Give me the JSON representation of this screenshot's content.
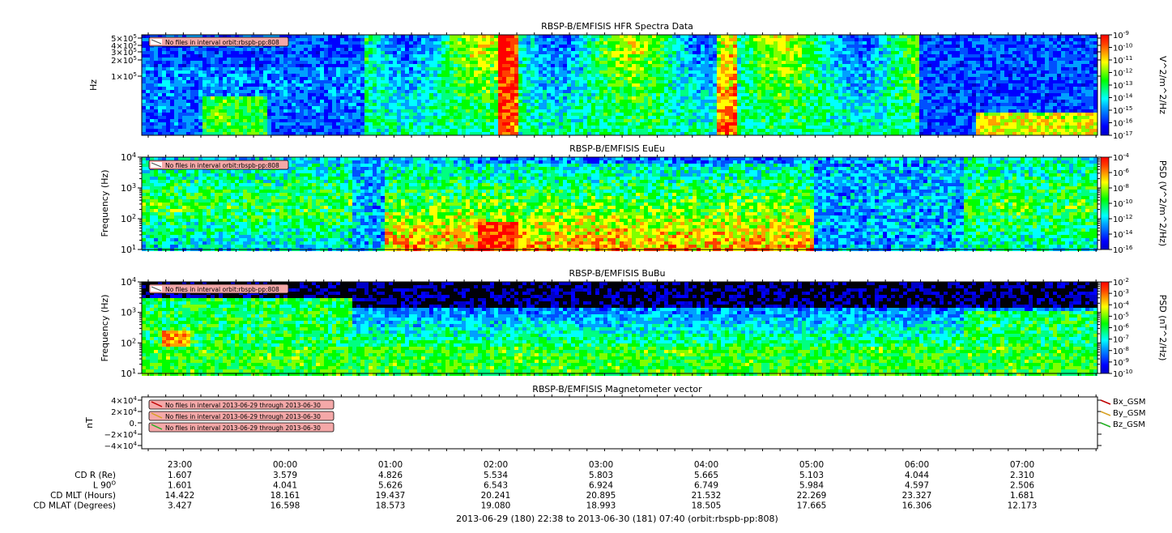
{
  "page": {
    "time_range_label": "2013-06-29 (180) 22:38 to 2013-06-30 (181) 07:40 (orbit:rbspb-pp:808)"
  },
  "colors": {
    "spectrogram_scale": [
      "#0000c8",
      "#0000ff",
      "#0050ff",
      "#00a0ff",
      "#00ffff",
      "#00ff80",
      "#00ff00",
      "#80ff00",
      "#ffff00",
      "#ffa000",
      "#ff4000",
      "#ff0000"
    ],
    "warning_fill": "#f4a8a8",
    "bx": "#c00000",
    "by": "#d8a020",
    "bz": "#20b020"
  },
  "time_axis": {
    "ticks": [
      "23:00",
      "00:00",
      "01:00",
      "02:00",
      "03:00",
      "04:00",
      "05:00",
      "06:00",
      "07:00"
    ]
  },
  "ephemeris": {
    "rows": [
      {
        "label": "CD R (Re)",
        "values": [
          "1.607",
          "3.579",
          "4.826",
          "5.534",
          "5.803",
          "5.665",
          "5.103",
          "4.044",
          "2.310"
        ]
      },
      {
        "label": "L 90",
        "sup": "O",
        "values": [
          "1.601",
          "4.041",
          "5.626",
          "6.543",
          "6.924",
          "6.749",
          "5.984",
          "4.597",
          "2.506"
        ]
      },
      {
        "label": "CD MLT (Hours)",
        "values": [
          "14.422",
          "18.161",
          "19.437",
          "20.241",
          "20.895",
          "21.532",
          "22.269",
          "23.327",
          "1.681"
        ]
      },
      {
        "label": "CD MLAT (Degrees)",
        "values": [
          "3.427",
          "16.598",
          "18.573",
          "19.080",
          "18.993",
          "18.505",
          "17.665",
          "16.306",
          "12.173"
        ]
      }
    ]
  },
  "chart_data": [
    {
      "type": "heatmap",
      "title": "RBSP-B/EMFISIS  HFR Spectra Data",
      "ylabel": "Hz",
      "y_scale": "log",
      "y_ticks": [
        {
          "base": "5",
          "exp": "5"
        },
        {
          "base": "4",
          "exp": "5"
        },
        {
          "base": "3",
          "exp": "5"
        },
        {
          "base": "2",
          "exp": "5"
        },
        {
          "base": "1",
          "exp": "5"
        }
      ],
      "ylim": [
        10000,
        500000
      ],
      "colorbar_label": "V^2/m^2/Hz",
      "colorbar_ticks": [
        "-9",
        "-10",
        "-11",
        "-12",
        "-13",
        "-14",
        "-15",
        "-16",
        "-17"
      ],
      "colorbar_range": [
        1e-17,
        1e-09
      ],
      "warning": "No files in interval orbit:rbspb-pp:808"
    },
    {
      "type": "heatmap",
      "title": "RBSP-B/EMFISIS  EuEu",
      "ylabel": "Frequency (Hz)",
      "y_scale": "log",
      "y_ticks": [
        "4",
        "3",
        "2",
        "1"
      ],
      "ylim": [
        10,
        10000
      ],
      "colorbar_label": "PSD (V^2/m^2/Hz)",
      "colorbar_ticks": [
        "-4",
        "-6",
        "-8",
        "-10",
        "-12",
        "-14",
        "-16"
      ],
      "colorbar_range": [
        1e-16,
        0.0001
      ],
      "warning": "No files in interval orbit:rbspb-pp:808"
    },
    {
      "type": "heatmap",
      "title": "RBSP-B/EMFISIS  BuBu",
      "ylabel": "Frequency (Hz)",
      "y_scale": "log",
      "y_ticks": [
        "4",
        "3",
        "2",
        "1"
      ],
      "ylim": [
        10,
        10000
      ],
      "colorbar_label": "PSD (nT^2/Hz)",
      "colorbar_ticks": [
        "-2",
        "-3",
        "-4",
        "-5",
        "-6",
        "-7",
        "-8",
        "-9",
        "-10"
      ],
      "colorbar_range": [
        1e-10,
        0.01
      ],
      "warning": "No files in interval orbit:rbspb-pp:808"
    },
    {
      "type": "line",
      "title": "RBSP-B/EMFISIS  Magnetometer vector",
      "ylabel": "nT",
      "y_ticks": [
        {
          "pre": "4",
          "exp": "4"
        },
        {
          "pre": "2",
          "exp": "4"
        },
        {
          "pre": "0.",
          "exp": ""
        },
        {
          "pre": "−2",
          "exp": "4"
        },
        {
          "pre": "−4",
          "exp": "4"
        }
      ],
      "ylim": [
        -40000,
        40000
      ],
      "series": [
        {
          "name": "Bx_GSM",
          "values": []
        },
        {
          "name": "By_GSM",
          "values": []
        },
        {
          "name": "Bz_GSM",
          "values": []
        }
      ],
      "warnings": [
        "No files in interval 2013-06-29 through 2013-06-30",
        "No files in interval 2013-06-29 through 2013-06-30",
        "No files in interval 2013-06-29 through 2013-06-30"
      ],
      "legend": "right"
    }
  ]
}
